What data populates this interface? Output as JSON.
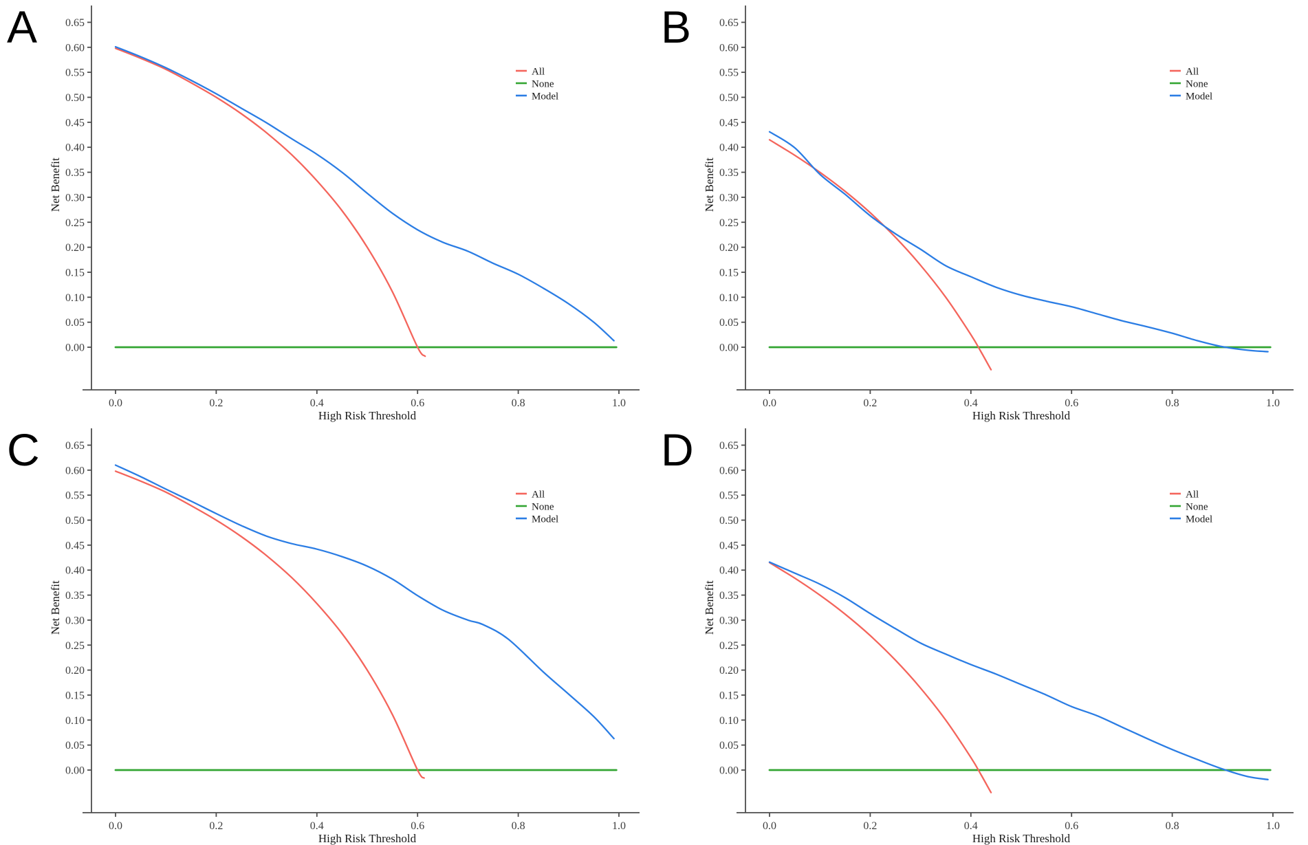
{
  "figure": {
    "background": "#ffffff"
  },
  "palette": {
    "all": "#f4655c",
    "none": "#33a532",
    "model": "#2b7de4",
    "axis_line": "#4d4d4d",
    "tick_text": "#3d3d3d",
    "label_text": "#1a1a1a"
  },
  "chart_data": [
    {
      "panel_label": "A",
      "type": "line",
      "xlabel": "High Risk Threshold",
      "ylabel": "Net Benefit",
      "xlim": [
        0,
        1
      ],
      "ylim": [
        -0.05,
        0.68
      ],
      "grid": false,
      "legend_position": "upper-right-inside",
      "x_ticks": [
        "0.0",
        "0.2",
        "0.4",
        "0.6",
        "0.8",
        "1.0"
      ],
      "y_ticks": [
        "0.00",
        "0.05",
        "0.10",
        "0.15",
        "0.20",
        "0.25",
        "0.30",
        "0.35",
        "0.40",
        "0.45",
        "0.50",
        "0.55",
        "0.60",
        "0.65"
      ],
      "legend": [
        {
          "name": "All",
          "series": "all"
        },
        {
          "name": "None",
          "series": "none"
        },
        {
          "name": "Model",
          "series": "model"
        }
      ],
      "series": [
        {
          "name": "None",
          "key": "none",
          "points": [
            [
              0,
              0
            ],
            [
              0.995,
              0
            ]
          ]
        },
        {
          "name": "All",
          "key": "all",
          "points": [
            [
              0,
              0.598
            ],
            [
              0.05,
              0.578
            ],
            [
              0.1,
              0.556
            ],
            [
              0.15,
              0.529
            ],
            [
              0.2,
              0.5
            ],
            [
              0.25,
              0.467
            ],
            [
              0.3,
              0.429
            ],
            [
              0.35,
              0.385
            ],
            [
              0.4,
              0.333
            ],
            [
              0.45,
              0.273
            ],
            [
              0.5,
              0.2
            ],
            [
              0.55,
              0.111
            ],
            [
              0.6,
              0.0
            ],
            [
              0.615,
              -0.018
            ]
          ]
        },
        {
          "name": "Model",
          "key": "model",
          "points": [
            [
              0,
              0.601
            ],
            [
              0.05,
              0.581
            ],
            [
              0.1,
              0.559
            ],
            [
              0.15,
              0.534
            ],
            [
              0.2,
              0.507
            ],
            [
              0.25,
              0.478
            ],
            [
              0.3,
              0.449
            ],
            [
              0.35,
              0.417
            ],
            [
              0.4,
              0.386
            ],
            [
              0.45,
              0.35
            ],
            [
              0.5,
              0.308
            ],
            [
              0.55,
              0.268
            ],
            [
              0.6,
              0.235
            ],
            [
              0.65,
              0.21
            ],
            [
              0.7,
              0.192
            ],
            [
              0.75,
              0.168
            ],
            [
              0.8,
              0.146
            ],
            [
              0.85,
              0.118
            ],
            [
              0.9,
              0.087
            ],
            [
              0.95,
              0.05
            ],
            [
              0.99,
              0.013
            ]
          ]
        }
      ]
    },
    {
      "panel_label": "B",
      "type": "line",
      "xlabel": "High Risk Threshold",
      "ylabel": "Net Benefit",
      "xlim": [
        0,
        1
      ],
      "ylim": [
        -0.05,
        0.68
      ],
      "grid": false,
      "legend_position": "upper-right-inside",
      "x_ticks": [
        "0.0",
        "0.2",
        "0.4",
        "0.6",
        "0.8",
        "1.0"
      ],
      "y_ticks": [
        "0.00",
        "0.05",
        "0.10",
        "0.15",
        "0.20",
        "0.25",
        "0.30",
        "0.35",
        "0.40",
        "0.45",
        "0.50",
        "0.55",
        "0.60",
        "0.65"
      ],
      "legend": [
        {
          "name": "All",
          "series": "all"
        },
        {
          "name": "None",
          "series": "none"
        },
        {
          "name": "Model",
          "series": "model"
        }
      ],
      "series": [
        {
          "name": "None",
          "key": "none",
          "points": [
            [
              0,
              0
            ],
            [
              0.995,
              0
            ]
          ]
        },
        {
          "name": "All",
          "key": "all",
          "points": [
            [
              0,
              0.415
            ],
            [
              0.05,
              0.384
            ],
            [
              0.1,
              0.35
            ],
            [
              0.15,
              0.312
            ],
            [
              0.2,
              0.269
            ],
            [
              0.25,
              0.22
            ],
            [
              0.3,
              0.164
            ],
            [
              0.35,
              0.1
            ],
            [
              0.4,
              0.025
            ],
            [
              0.42,
              -0.009
            ],
            [
              0.44,
              -0.045
            ]
          ]
        },
        {
          "name": "Model",
          "key": "model",
          "points": [
            [
              0,
              0.431
            ],
            [
              0.05,
              0.399
            ],
            [
              0.1,
              0.346
            ],
            [
              0.15,
              0.306
            ],
            [
              0.2,
              0.263
            ],
            [
              0.25,
              0.227
            ],
            [
              0.3,
              0.196
            ],
            [
              0.35,
              0.163
            ],
            [
              0.4,
              0.141
            ],
            [
              0.45,
              0.12
            ],
            [
              0.5,
              0.104
            ],
            [
              0.55,
              0.092
            ],
            [
              0.6,
              0.081
            ],
            [
              0.65,
              0.067
            ],
            [
              0.7,
              0.053
            ],
            [
              0.75,
              0.041
            ],
            [
              0.8,
              0.028
            ],
            [
              0.85,
              0.013
            ],
            [
              0.9,
              0.001
            ],
            [
              0.95,
              -0.006
            ],
            [
              0.99,
              -0.009
            ]
          ]
        }
      ]
    },
    {
      "panel_label": "C",
      "type": "line",
      "xlabel": "High Risk Threshold",
      "ylabel": "Net Benefit",
      "xlim": [
        0,
        1
      ],
      "ylim": [
        -0.05,
        0.68
      ],
      "grid": false,
      "legend_position": "upper-right-inside",
      "x_ticks": [
        "0.0",
        "0.2",
        "0.4",
        "0.6",
        "0.8",
        "1.0"
      ],
      "y_ticks": [
        "0.00",
        "0.05",
        "0.10",
        "0.15",
        "0.20",
        "0.25",
        "0.30",
        "0.35",
        "0.40",
        "0.45",
        "0.50",
        "0.55",
        "0.60",
        "0.65"
      ],
      "legend": [
        {
          "name": "All",
          "series": "all"
        },
        {
          "name": "None",
          "series": "none"
        },
        {
          "name": "Model",
          "series": "model"
        }
      ],
      "series": [
        {
          "name": "None",
          "key": "none",
          "points": [
            [
              0,
              0
            ],
            [
              0.995,
              0
            ]
          ]
        },
        {
          "name": "All",
          "key": "all",
          "points": [
            [
              0,
              0.598
            ],
            [
              0.05,
              0.578
            ],
            [
              0.1,
              0.556
            ],
            [
              0.15,
              0.529
            ],
            [
              0.2,
              0.5
            ],
            [
              0.25,
              0.467
            ],
            [
              0.3,
              0.429
            ],
            [
              0.35,
              0.385
            ],
            [
              0.4,
              0.333
            ],
            [
              0.45,
              0.273
            ],
            [
              0.5,
              0.2
            ],
            [
              0.55,
              0.111
            ],
            [
              0.6,
              0.0
            ],
            [
              0.613,
              -0.016
            ]
          ]
        },
        {
          "name": "Model",
          "key": "model",
          "points": [
            [
              0,
              0.61
            ],
            [
              0.05,
              0.587
            ],
            [
              0.1,
              0.562
            ],
            [
              0.15,
              0.538
            ],
            [
              0.2,
              0.513
            ],
            [
              0.25,
              0.489
            ],
            [
              0.3,
              0.468
            ],
            [
              0.35,
              0.453
            ],
            [
              0.4,
              0.442
            ],
            [
              0.45,
              0.427
            ],
            [
              0.5,
              0.408
            ],
            [
              0.55,
              0.382
            ],
            [
              0.6,
              0.349
            ],
            [
              0.65,
              0.32
            ],
            [
              0.7,
              0.3
            ],
            [
              0.73,
              0.291
            ],
            [
              0.78,
              0.262
            ],
            [
              0.85,
              0.196
            ],
            [
              0.9,
              0.152
            ],
            [
              0.95,
              0.107
            ],
            [
              0.99,
              0.063
            ]
          ]
        }
      ]
    },
    {
      "panel_label": "D",
      "type": "line",
      "xlabel": "High Risk Threshold",
      "ylabel": "Net Benefit",
      "xlim": [
        0,
        1
      ],
      "ylim": [
        -0.05,
        0.68
      ],
      "grid": false,
      "legend_position": "upper-right-inside",
      "x_ticks": [
        "0.0",
        "0.2",
        "0.4",
        "0.6",
        "0.8",
        "1.0"
      ],
      "y_ticks": [
        "0.00",
        "0.05",
        "0.10",
        "0.15",
        "0.20",
        "0.25",
        "0.30",
        "0.35",
        "0.40",
        "0.45",
        "0.50",
        "0.55",
        "0.60",
        "0.65"
      ],
      "legend": [
        {
          "name": "All",
          "series": "all"
        },
        {
          "name": "None",
          "series": "none"
        },
        {
          "name": "Model",
          "series": "model"
        }
      ],
      "series": [
        {
          "name": "None",
          "key": "none",
          "points": [
            [
              0,
              0
            ],
            [
              0.995,
              0
            ]
          ]
        },
        {
          "name": "All",
          "key": "all",
          "points": [
            [
              0,
              0.415
            ],
            [
              0.05,
              0.384
            ],
            [
              0.1,
              0.35
            ],
            [
              0.15,
              0.312
            ],
            [
              0.2,
              0.269
            ],
            [
              0.25,
              0.22
            ],
            [
              0.3,
              0.164
            ],
            [
              0.35,
              0.1
            ],
            [
              0.4,
              0.025
            ],
            [
              0.42,
              -0.009
            ],
            [
              0.44,
              -0.045
            ]
          ]
        },
        {
          "name": "Model",
          "key": "model",
          "points": [
            [
              0,
              0.416
            ],
            [
              0.05,
              0.394
            ],
            [
              0.1,
              0.372
            ],
            [
              0.15,
              0.345
            ],
            [
              0.2,
              0.313
            ],
            [
              0.25,
              0.283
            ],
            [
              0.3,
              0.254
            ],
            [
              0.35,
              0.232
            ],
            [
              0.4,
              0.211
            ],
            [
              0.45,
              0.192
            ],
            [
              0.5,
              0.171
            ],
            [
              0.55,
              0.15
            ],
            [
              0.6,
              0.127
            ],
            [
              0.65,
              0.109
            ],
            [
              0.7,
              0.086
            ],
            [
              0.75,
              0.063
            ],
            [
              0.8,
              0.041
            ],
            [
              0.85,
              0.021
            ],
            [
              0.9,
              0.002
            ],
            [
              0.95,
              -0.013
            ],
            [
              0.99,
              -0.019
            ]
          ]
        }
      ]
    }
  ]
}
